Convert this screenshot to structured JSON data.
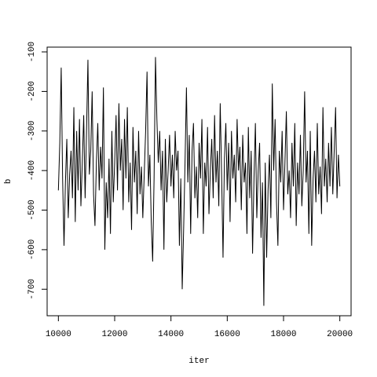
{
  "chart_data": {
    "type": "line",
    "xlabel": "iter",
    "ylabel": "b",
    "xlim": [
      9600,
      20400
    ],
    "ylim": [
      -767,
      -88
    ],
    "xticks": [
      10000,
      12000,
      14000,
      16000,
      18000,
      20000
    ],
    "yticks": [
      -700,
      -600,
      -500,
      -400,
      -300,
      -200,
      -100
    ],
    "color": "#000000",
    "x": [
      10000,
      10050,
      10100,
      10150,
      10200,
      10250,
      10300,
      10350,
      10400,
      10450,
      10500,
      10550,
      10600,
      10650,
      10700,
      10750,
      10800,
      10850,
      10900,
      10950,
      11000,
      11050,
      11100,
      11150,
      11200,
      11250,
      11300,
      11350,
      11400,
      11450,
      11500,
      11550,
      11600,
      11650,
      11700,
      11750,
      11800,
      11850,
      11900,
      11950,
      12000,
      12050,
      12100,
      12150,
      12200,
      12250,
      12300,
      12350,
      12400,
      12450,
      12500,
      12550,
      12600,
      12650,
      12700,
      12750,
      12800,
      12850,
      12900,
      12950,
      13000,
      13050,
      13100,
      13150,
      13200,
      13250,
      13300,
      13350,
      13400,
      13450,
      13500,
      13550,
      13600,
      13650,
      13700,
      13750,
      13800,
      13850,
      13900,
      13950,
      14000,
      14050,
      14100,
      14150,
      14200,
      14250,
      14300,
      14350,
      14400,
      14450,
      14500,
      14550,
      14600,
      14650,
      14700,
      14750,
      14800,
      14850,
      14900,
      14950,
      15000,
      15050,
      15100,
      15150,
      15200,
      15250,
      15300,
      15350,
      15400,
      15450,
      15500,
      15550,
      15600,
      15650,
      15700,
      15750,
      15800,
      15850,
      15900,
      15950,
      16000,
      16050,
      16100,
      16150,
      16200,
      16250,
      16300,
      16350,
      16400,
      16450,
      16500,
      16550,
      16600,
      16650,
      16700,
      16750,
      16800,
      16850,
      16900,
      16950,
      17000,
      17050,
      17100,
      17150,
      17200,
      17250,
      17300,
      17350,
      17400,
      17450,
      17500,
      17550,
      17600,
      17650,
      17700,
      17750,
      17800,
      17850,
      17900,
      17950,
      18000,
      18050,
      18100,
      18150,
      18200,
      18250,
      18300,
      18350,
      18400,
      18450,
      18500,
      18550,
      18600,
      18650,
      18700,
      18750,
      18800,
      18850,
      18900,
      18950,
      19000,
      19050,
      19100,
      19150,
      19200,
      19250,
      19300,
      19350,
      19400,
      19450,
      19500,
      19550,
      19600,
      19650,
      19700,
      19750,
      19800,
      19850,
      19900,
      19950,
      20000
    ],
    "values": [
      -450,
      -330,
      -140,
      -420,
      -590,
      -430,
      -320,
      -520,
      -410,
      -350,
      -470,
      -240,
      -530,
      -300,
      -450,
      -270,
      -490,
      -380,
      -260,
      -470,
      -300,
      -120,
      -410,
      -350,
      -200,
      -460,
      -540,
      -380,
      -280,
      -450,
      -340,
      -420,
      -190,
      -600,
      -430,
      -520,
      -370,
      -560,
      -300,
      -480,
      -380,
      -260,
      -450,
      -230,
      -400,
      -320,
      -500,
      -270,
      -420,
      -240,
      -480,
      -380,
      -550,
      -290,
      -430,
      -350,
      -510,
      -300,
      -460,
      -390,
      -520,
      -410,
      -300,
      -150,
      -440,
      -360,
      -530,
      -630,
      -420,
      -113,
      -270,
      -380,
      -300,
      -450,
      -350,
      -600,
      -320,
      -480,
      -400,
      -310,
      -440,
      -360,
      -470,
      -300,
      -400,
      -350,
      -590,
      -420,
      -700,
      -550,
      -380,
      -190,
      -430,
      -310,
      -560,
      -350,
      -280,
      -470,
      -390,
      -520,
      -330,
      -420,
      -270,
      -560,
      -380,
      -440,
      -290,
      -510,
      -400,
      -320,
      -470,
      -260,
      -430,
      -350,
      -490,
      -230,
      -410,
      -620,
      -370,
      -280,
      -450,
      -330,
      -530,
      -300,
      -420,
      -360,
      -480,
      -270,
      -400,
      -340,
      -500,
      -310,
      -430,
      -380,
      -560,
      -290,
      -470,
      -350,
      -610,
      -420,
      -280,
      -520,
      -400,
      -330,
      -570,
      -430,
      -742,
      -380,
      -620,
      -450,
      -360,
      -520,
      -180,
      -400,
      -270,
      -480,
      -590,
      -350,
      -430,
      -300,
      -500,
      -380,
      -250,
      -460,
      -400,
      -520,
      -330,
      -440,
      -280,
      -540,
      -380,
      -460,
      -310,
      -490,
      -400,
      -200,
      -430,
      -350,
      -560,
      -300,
      -590,
      -420,
      -350,
      -480,
      -280,
      -460,
      -390,
      -510,
      -240,
      -440,
      -370,
      -480,
      -330,
      -440,
      -290,
      -460,
      -350,
      -240,
      -470,
      -360,
      -440
    ]
  }
}
